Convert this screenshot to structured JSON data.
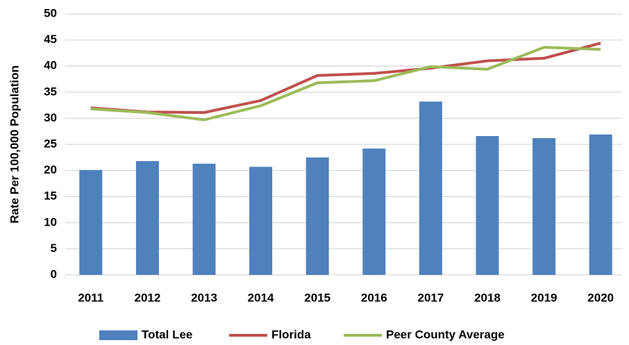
{
  "chart_data": {
    "type": "bar",
    "y_label": "Rate Per 100,000 Population",
    "categories": [
      "2011",
      "2012",
      "2013",
      "2014",
      "2015",
      "2016",
      "2017",
      "2018",
      "2019",
      "2020"
    ],
    "series": [
      {
        "name": "Total Lee",
        "type": "bar",
        "color": "#4f81bd",
        "values": [
          20.1,
          21.8,
          21.3,
          20.7,
          22.5,
          24.2,
          33.2,
          26.6,
          26.2,
          26.9
        ]
      },
      {
        "name": "Florida",
        "type": "line",
        "color": "#c0504d",
        "values": [
          32.0,
          31.2,
          31.1,
          33.4,
          38.2,
          38.6,
          39.6,
          41.0,
          41.5,
          44.4
        ]
      },
      {
        "name": "Peer County Average",
        "type": "line",
        "color": "#9bbb59",
        "values": [
          31.8,
          31.1,
          29.7,
          32.4,
          36.8,
          37.2,
          39.9,
          39.4,
          43.6,
          43.2
        ]
      }
    ],
    "ylim": [
      0,
      50
    ],
    "yticks": [
      0,
      5,
      10,
      15,
      20,
      25,
      30,
      35,
      40,
      45,
      50
    ],
    "grid": true,
    "legend": "bottom"
  }
}
